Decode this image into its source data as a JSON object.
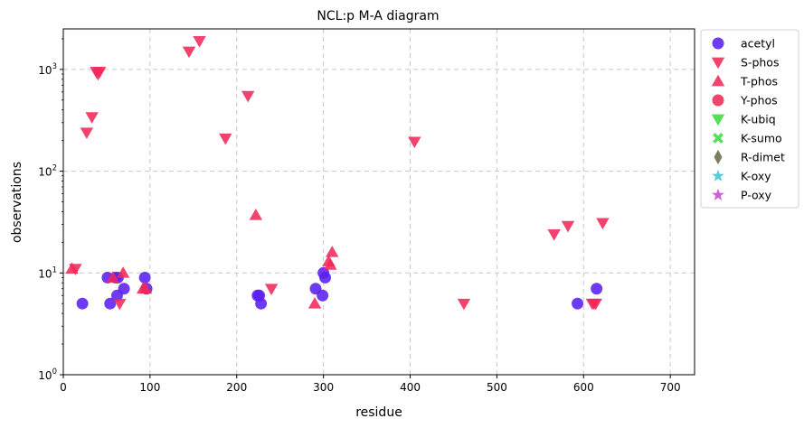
{
  "chart_data": {
    "type": "scatter",
    "title": "NCL:p M-A diagram",
    "xlabel": "residue",
    "ylabel": "observations",
    "xlim": [
      0,
      728
    ],
    "ylim": [
      1,
      2500
    ],
    "yscale": "log",
    "xticks": [
      0,
      100,
      200,
      300,
      400,
      500,
      600,
      700
    ],
    "yticks": [
      1,
      10,
      100,
      1000
    ],
    "ytick_labels": [
      {
        "base": "10",
        "exp": "0"
      },
      {
        "base": "10",
        "exp": "1"
      },
      {
        "base": "10",
        "exp": "2"
      },
      {
        "base": "10",
        "exp": "3"
      }
    ],
    "grid": true,
    "legend_position": "outside-right",
    "series": [
      {
        "name": "acetyl",
        "marker": "circle",
        "color": "#5a1ff0",
        "points": [
          [
            22,
            5
          ],
          [
            51,
            9
          ],
          [
            54,
            5
          ],
          [
            60,
            9
          ],
          [
            62,
            6
          ],
          [
            63,
            9
          ],
          [
            70,
            7
          ],
          [
            94,
            9
          ],
          [
            96,
            7
          ],
          [
            224,
            6
          ],
          [
            226,
            6
          ],
          [
            228,
            5
          ],
          [
            291,
            7
          ],
          [
            299,
            6
          ],
          [
            300,
            10
          ],
          [
            302,
            9
          ],
          [
            593,
            5
          ],
          [
            615,
            7
          ]
        ]
      },
      {
        "name": "S-phos",
        "marker": "triangle-down",
        "color": "#f0285a",
        "points": [
          [
            14,
            11
          ],
          [
            27,
            240
          ],
          [
            33,
            340
          ],
          [
            38,
            950
          ],
          [
            40,
            900
          ],
          [
            42,
            950
          ],
          [
            65,
            5
          ],
          [
            145,
            1500
          ],
          [
            157,
            1900
          ],
          [
            187,
            210
          ],
          [
            213,
            550
          ],
          [
            240,
            7
          ],
          [
            405,
            195
          ],
          [
            462,
            5
          ],
          [
            566,
            24
          ],
          [
            582,
            29
          ],
          [
            610,
            5
          ],
          [
            612,
            5
          ],
          [
            614,
            5
          ],
          [
            622,
            31
          ]
        ]
      },
      {
        "name": "T-phos",
        "marker": "triangle-up",
        "color": "#f0285a",
        "points": [
          [
            10,
            11
          ],
          [
            57,
            9
          ],
          [
            69,
            10
          ],
          [
            92,
            7
          ],
          [
            95,
            7
          ],
          [
            222,
            37
          ],
          [
            290,
            5
          ],
          [
            306,
            13
          ],
          [
            308,
            12
          ],
          [
            310,
            16
          ]
        ]
      },
      {
        "name": "Y-phos",
        "marker": "circle",
        "color": "#f0285a",
        "points": []
      },
      {
        "name": "K-ubiq",
        "marker": "triangle-down",
        "color": "#3cdc3c",
        "points": []
      },
      {
        "name": "K-sumo",
        "marker": "x",
        "color": "#3cdc3c",
        "points": []
      },
      {
        "name": "R-dimet",
        "marker": "diamond",
        "color": "#6b6b45",
        "points": []
      },
      {
        "name": "K-oxy",
        "marker": "star",
        "color": "#3cc8d2",
        "points": []
      },
      {
        "name": "P-oxy",
        "marker": "star",
        "color": "#c84bd2",
        "points": []
      }
    ]
  }
}
